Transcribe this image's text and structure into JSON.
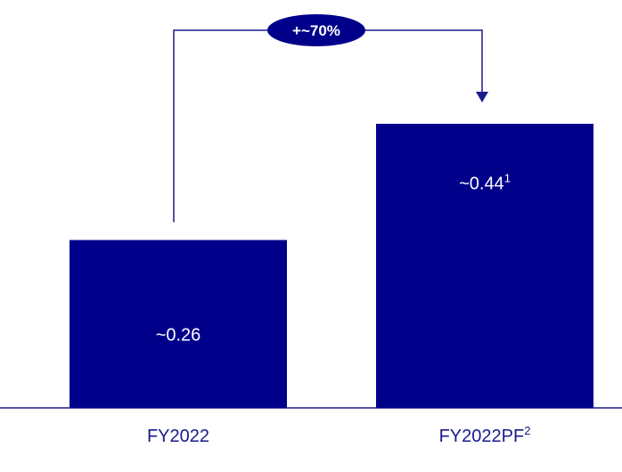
{
  "chart_data": {
    "type": "bar",
    "categories": [
      "FY2022",
      "FY2022PF"
    ],
    "category_superscripts": [
      "",
      "2"
    ],
    "values": [
      0.26,
      0.44
    ],
    "value_labels": [
      "~0.26",
      "~0.44"
    ],
    "value_superscripts": [
      "",
      "1"
    ],
    "ylim": [
      0,
      0.6
    ],
    "grid": false,
    "legend": "none",
    "annotation": {
      "text": "+~70%",
      "from": "FY2022",
      "to": "FY2022PF"
    },
    "colors": {
      "bar": "#00008b",
      "line": "#1a1a8c",
      "badge": "#00008b",
      "label": "#1a1a8c"
    }
  }
}
